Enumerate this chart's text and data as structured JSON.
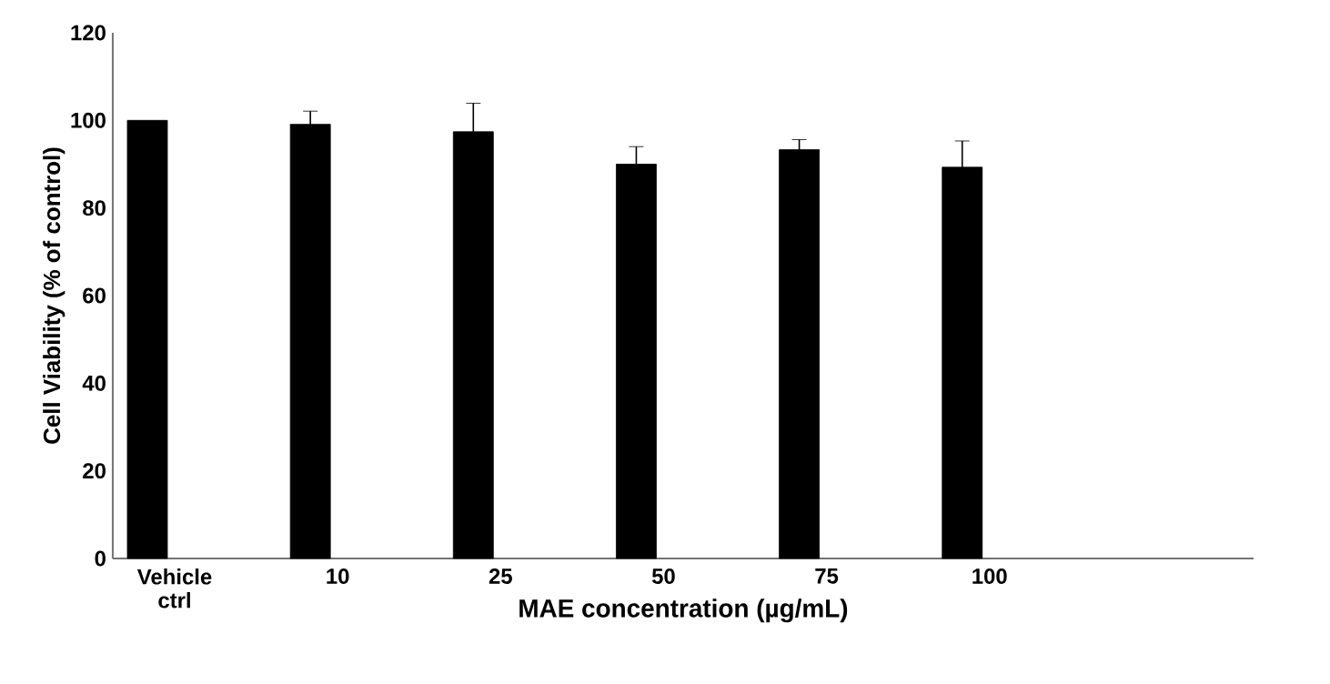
{
  "chart_data": {
    "type": "bar",
    "xlabel": "MAE concentration (µg/mL)",
    "ylabel": "Cell Viability (% of control)",
    "categories": [
      "Vehicle ctrl",
      "10",
      "25",
      "50",
      "75",
      "100"
    ],
    "series": [
      {
        "color": "#000000",
        "values": [
          100,
          99.1,
          97.4,
          90,
          93.3,
          89.3
        ],
        "errors": [
          null,
          3,
          6.5,
          4,
          2.3,
          6
        ]
      }
    ],
    "ylim": [
      0,
      120
    ],
    "yticks": [
      0,
      20,
      40,
      60,
      80,
      100,
      120
    ],
    "grid": false
  }
}
